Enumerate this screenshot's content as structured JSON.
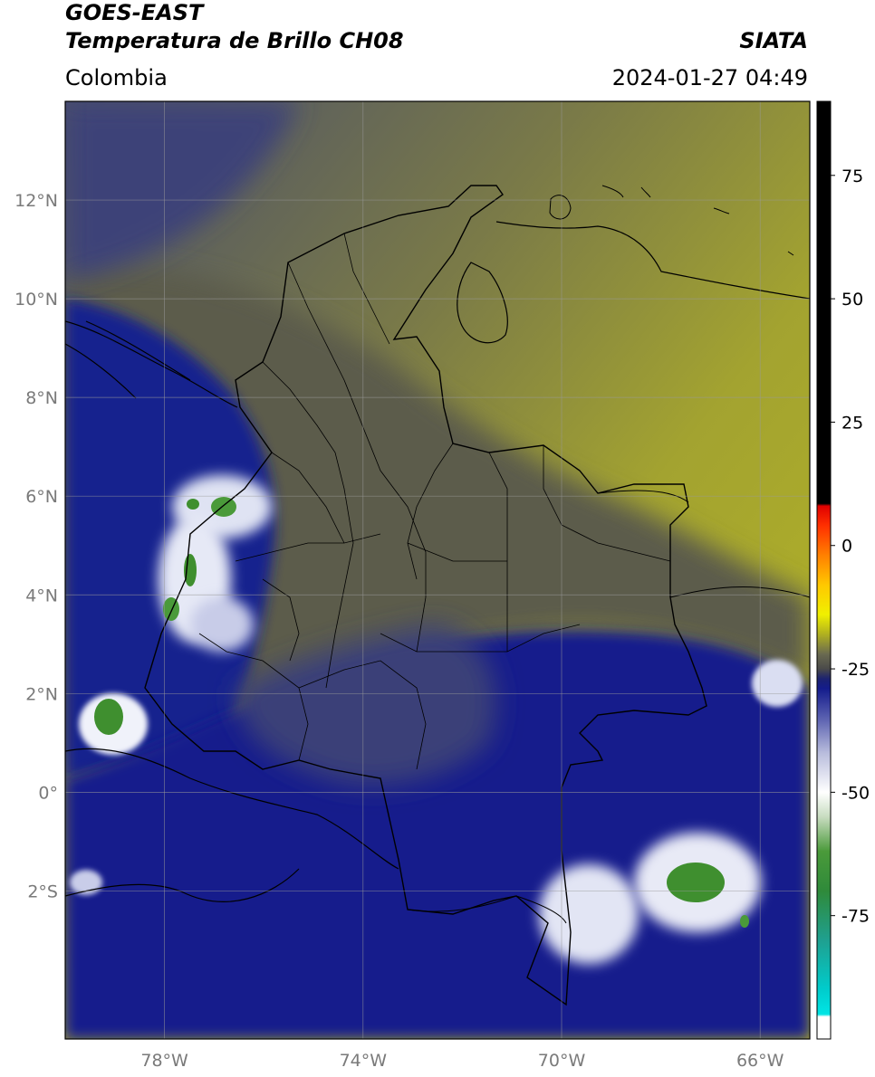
{
  "header": {
    "satellite": "GOES-EAST",
    "product": "Temperatura de Brillo CH08",
    "region": "Colombia",
    "agency": "SIATA",
    "timestamp": "2024-01-27 04:49"
  },
  "map": {
    "lon_range": [
      -80,
      -65
    ],
    "lat_range": [
      -5,
      14
    ],
    "lon_ticks": [
      {
        "value": -78,
        "label": "78°W"
      },
      {
        "value": -74,
        "label": "74°W"
      },
      {
        "value": -70,
        "label": "70°W"
      },
      {
        "value": -66,
        "label": "66°W"
      }
    ],
    "lat_ticks": [
      {
        "value": 12,
        "label": "12°N"
      },
      {
        "value": 10,
        "label": "10°N"
      },
      {
        "value": 8,
        "label": "8°N"
      },
      {
        "value": 6,
        "label": "6°N"
      },
      {
        "value": 4,
        "label": "4°N"
      },
      {
        "value": 2,
        "label": "2°N"
      },
      {
        "value": 0,
        "label": "0°"
      },
      {
        "value": -2,
        "label": "2°S"
      }
    ],
    "gridlines": true,
    "colors": {
      "warm_dry": "#a8a82a",
      "mid": "#5a5a4a",
      "cold": "#1a1f8a",
      "deep_convection": "#e8ecf6",
      "coldest_tops": "#3f8f2f",
      "border": "#000000"
    }
  },
  "colorbar": {
    "range": [
      -100,
      90
    ],
    "ticks": [
      {
        "value": 75,
        "label": "75"
      },
      {
        "value": 50,
        "label": "50"
      },
      {
        "value": 25,
        "label": "25"
      },
      {
        "value": 0,
        "label": "0"
      },
      {
        "value": -25,
        "label": "-25"
      },
      {
        "value": -50,
        "label": "-50"
      },
      {
        "value": -75,
        "label": "-75"
      }
    ],
    "stops": [
      {
        "value": -100,
        "color": "#ffffff"
      },
      {
        "value": -95.5,
        "color": "#ffffff"
      },
      {
        "value": -95,
        "color": "#00e5e5"
      },
      {
        "value": -90,
        "color": "#00cccc"
      },
      {
        "value": -80,
        "color": "#1fa090"
      },
      {
        "value": -70,
        "color": "#2f8a3a"
      },
      {
        "value": -62,
        "color": "#4a9a3a"
      },
      {
        "value": -55,
        "color": "#c8dcc0"
      },
      {
        "value": -50,
        "color": "#ffffff"
      },
      {
        "value": -42,
        "color": "#b8bcdc"
      },
      {
        "value": -35,
        "color": "#5a60b0"
      },
      {
        "value": -29,
        "color": "#141c8c"
      },
      {
        "value": -27,
        "color": "#1c2270"
      },
      {
        "value": -25,
        "color": "#4a4a4a"
      },
      {
        "value": -22,
        "color": "#6a6a50"
      },
      {
        "value": -18,
        "color": "#b0b020"
      },
      {
        "value": -14,
        "color": "#f0f000"
      },
      {
        "value": -8,
        "color": "#ffc800"
      },
      {
        "value": -2,
        "color": "#ff8000"
      },
      {
        "value": 4,
        "color": "#ff3000"
      },
      {
        "value": 8,
        "color": "#e00000"
      },
      {
        "value": 8.5,
        "color": "#000000"
      },
      {
        "value": 90,
        "color": "#000000"
      }
    ]
  }
}
